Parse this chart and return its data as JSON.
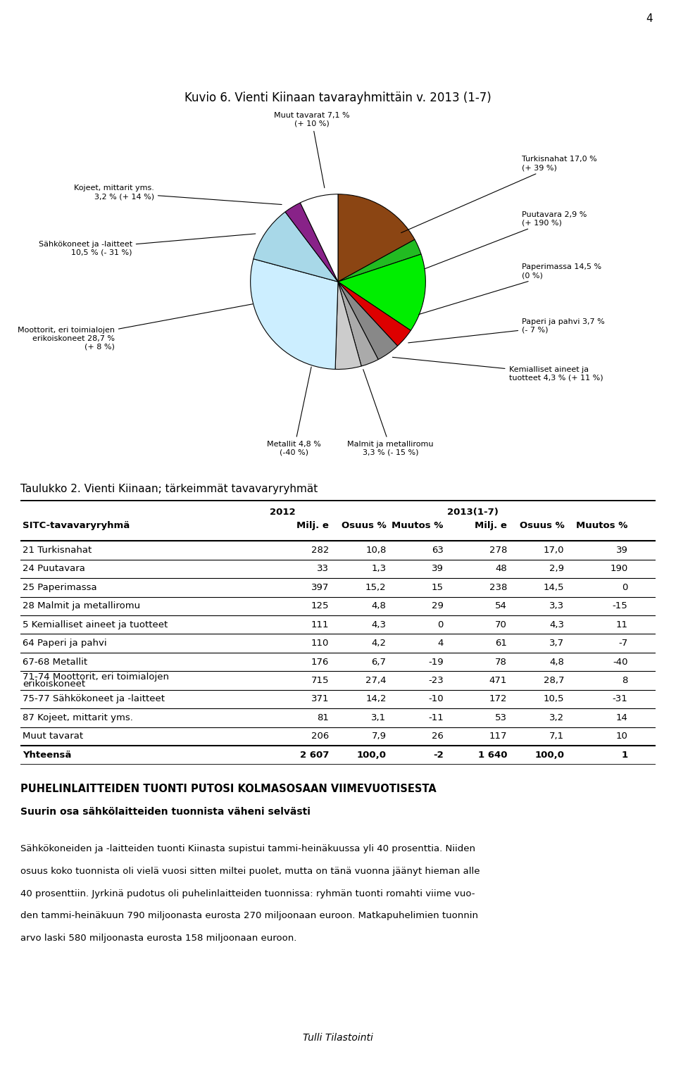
{
  "title": "Kuvio 6. Vienti Kiinaan tavarayhmittäin v. 2013 (1-7)",
  "page_number": "4",
  "pie_slices": [
    {
      "label": "Turkisnahat 17,0 %\n(+ 39 %)",
      "value": 17.0,
      "color": "#8B4513"
    },
    {
      "label": "Puutavara 2,9 %\n(+ 190 %)",
      "value": 2.9,
      "color": "#22BB22"
    },
    {
      "label": "Paperimassa 14,5 %\n(0 %)",
      "value": 14.5,
      "color": "#00EE00"
    },
    {
      "label": "Paperi ja pahvi 3,7 %\n(- 7 %)",
      "value": 3.7,
      "color": "#DD0000"
    },
    {
      "label": "Kemialliset aineet ja\ntuotteet 4,3 % (+ 11 %)",
      "value": 4.3,
      "color": "#888888"
    },
    {
      "label": "Malmit ja metalliromu\n3,3 % (- 15 %)",
      "value": 3.3,
      "color": "#AAAAAA"
    },
    {
      "label": "Metallit 4,8 %\n(-40 %)",
      "value": 4.8,
      "color": "#CCCCCC"
    },
    {
      "label": "Moottorit, eri toimialojen\nerikoiskoneet 28,7 %\n(+ 8 %)",
      "value": 28.7,
      "color": "#CCEEFF"
    },
    {
      "label": "Sähkökoneet ja -laitteet\n10,5 % (- 31 %)",
      "value": 10.5,
      "color": "#A8D8E8"
    },
    {
      "label": "Kojeet, mittarit yms.\n3,2 % (+ 14 %)",
      "value": 3.2,
      "color": "#882288"
    },
    {
      "label": "Muut tavarat 7,1 %\n(+ 10 %)",
      "value": 7.1,
      "color": "#FFFFFF"
    }
  ],
  "table_title": "Taulukko 2. Vienti Kiinaan; tärkeimmät tavavaryryhmät",
  "table_rows": [
    [
      "21 Turkisnahat",
      "282",
      "10,8",
      "63",
      "278",
      "17,0",
      "39"
    ],
    [
      "24 Puutavara",
      "33",
      "1,3",
      "39",
      "48",
      "2,9",
      "190"
    ],
    [
      "25 Paperimassa",
      "397",
      "15,2",
      "15",
      "238",
      "14,5",
      "0"
    ],
    [
      "28 Malmit ja metalliromu",
      "125",
      "4,8",
      "29",
      "54",
      "3,3",
      "-15"
    ],
    [
      "5 Kemialliset aineet ja tuotteet",
      "111",
      "4,3",
      "0",
      "70",
      "4,3",
      "11"
    ],
    [
      "64 Paperi ja pahvi",
      "110",
      "4,2",
      "4",
      "61",
      "3,7",
      "-7"
    ],
    [
      "67-68 Metallit",
      "176",
      "6,7",
      "-19",
      "78",
      "4,8",
      "-40"
    ],
    [
      "71-74 Moottorit, eri toimialojen erikoiskoneet",
      "715",
      "27,4",
      "-23",
      "471",
      "28,7",
      "8"
    ],
    [
      "75-77 Sähkökoneet ja -laitteet",
      "371",
      "14,2",
      "-10",
      "172",
      "10,5",
      "-31"
    ],
    [
      "87 Kojeet, mittarit yms.",
      "81",
      "3,1",
      "-11",
      "53",
      "3,2",
      "14"
    ],
    [
      "Muut tavarat",
      "206",
      "7,9",
      "26",
      "117",
      "7,1",
      "10"
    ],
    [
      "Yhteensä",
      "2 607",
      "100,0",
      "-2",
      "1 640",
      "100,0",
      "1"
    ]
  ],
  "bold_header": "PUHELINLAITTEIDEN TUONTI PUTOSI KOLMASOSAAN VIIMEVUOTISESTA",
  "subheader": "Suurin osa sähkölaitteiden tuonnista väheni selvästi",
  "body_lines": [
    "Sähkökoneiden ja -laitteiden tuonti Kiinasta supistui tammi-heinäkuussa yli 40 prosenttia. Niiden",
    "osuus koko tuonnista oli vielä vuosi sitten miltei puolet, mutta on tänä vuonna jäänyt hieman alle",
    "40 prosenttiin. Jyrkinä pudotus oli puhelinlaitteiden tuonnissa: ryhmän tuonti romahti viime vuo-",
    "den tammi-heinäkuun 790 miljoonasta eurosta 270 miljoonaan euroon. Matkapuhelimien tuonnin",
    "arvo laski 580 miljoonasta eurosta 158 miljoonaan euroon."
  ],
  "footer": "Tulli Tilastointi"
}
